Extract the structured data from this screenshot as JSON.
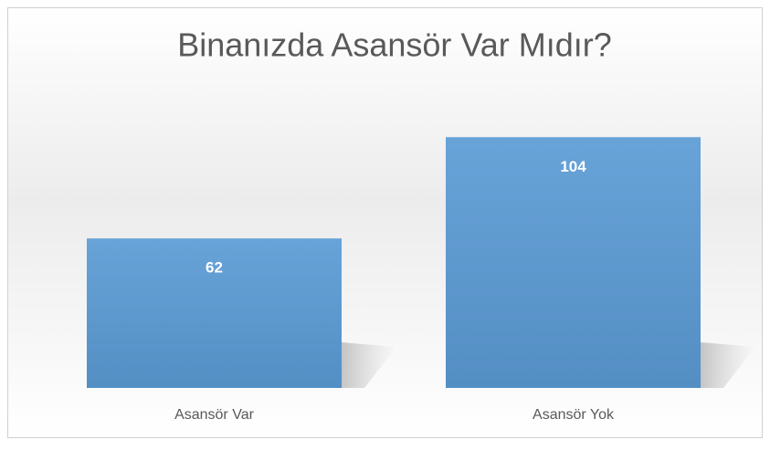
{
  "chart_data": {
    "type": "bar",
    "title": "Binanızda Asansör Var Mıdır?",
    "categories": [
      "Asansör Var",
      "Asansör Yok"
    ],
    "values": [
      62,
      104
    ],
    "color": "#5b9bd5",
    "ylim": [
      0,
      120
    ],
    "data_labels": true
  }
}
